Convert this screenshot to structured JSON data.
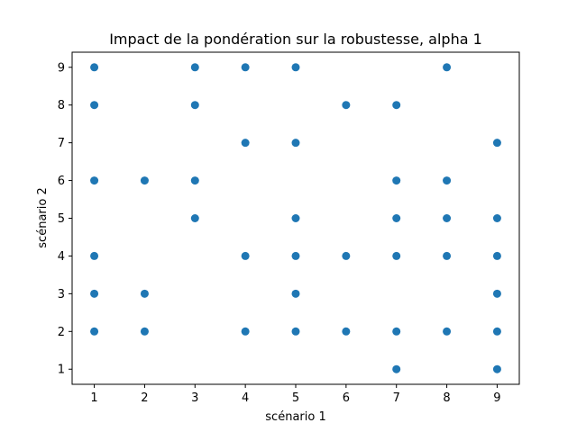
{
  "chart_data": {
    "type": "scatter",
    "title": "Impact de la pondération sur la robustesse, alpha 1",
    "xlabel": "scénario 1",
    "ylabel": "scénario 2",
    "xlim": [
      0.56,
      9.44
    ],
    "ylim": [
      0.6,
      9.4
    ],
    "xticks": [
      1,
      2,
      3,
      4,
      5,
      6,
      7,
      8,
      9
    ],
    "yticks": [
      1,
      2,
      3,
      4,
      5,
      6,
      7,
      8,
      9
    ],
    "grid": false,
    "legend": "none",
    "marker_color": "#1f77b4",
    "points": [
      {
        "x": 1,
        "y": 9
      },
      {
        "x": 1,
        "y": 8
      },
      {
        "x": 1,
        "y": 6
      },
      {
        "x": 1,
        "y": 4
      },
      {
        "x": 1,
        "y": 3
      },
      {
        "x": 1,
        "y": 2
      },
      {
        "x": 2,
        "y": 6
      },
      {
        "x": 2,
        "y": 3
      },
      {
        "x": 2,
        "y": 2
      },
      {
        "x": 3,
        "y": 9
      },
      {
        "x": 3,
        "y": 8
      },
      {
        "x": 3,
        "y": 6
      },
      {
        "x": 3,
        "y": 5
      },
      {
        "x": 4,
        "y": 9
      },
      {
        "x": 4,
        "y": 7
      },
      {
        "x": 4,
        "y": 4
      },
      {
        "x": 4,
        "y": 2
      },
      {
        "x": 5,
        "y": 9
      },
      {
        "x": 5,
        "y": 7
      },
      {
        "x": 5,
        "y": 5
      },
      {
        "x": 5,
        "y": 4
      },
      {
        "x": 5,
        "y": 3
      },
      {
        "x": 5,
        "y": 2
      },
      {
        "x": 6,
        "y": 8
      },
      {
        "x": 6,
        "y": 4
      },
      {
        "x": 6,
        "y": 2
      },
      {
        "x": 7,
        "y": 8
      },
      {
        "x": 7,
        "y": 6
      },
      {
        "x": 7,
        "y": 5
      },
      {
        "x": 7,
        "y": 4
      },
      {
        "x": 7,
        "y": 2
      },
      {
        "x": 7,
        "y": 1
      },
      {
        "x": 8,
        "y": 9
      },
      {
        "x": 8,
        "y": 6
      },
      {
        "x": 8,
        "y": 5
      },
      {
        "x": 8,
        "y": 4
      },
      {
        "x": 8,
        "y": 2
      },
      {
        "x": 9,
        "y": 7
      },
      {
        "x": 9,
        "y": 5
      },
      {
        "x": 9,
        "y": 4
      },
      {
        "x": 9,
        "y": 3
      },
      {
        "x": 9,
        "y": 2
      },
      {
        "x": 9,
        "y": 1
      }
    ]
  }
}
